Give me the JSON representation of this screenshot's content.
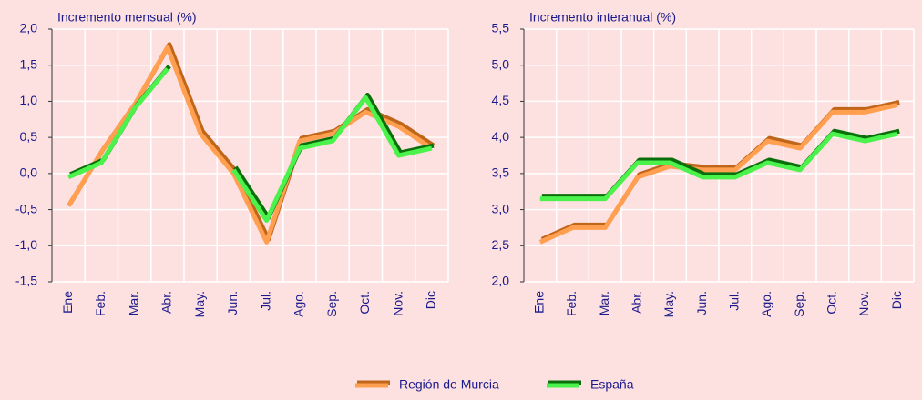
{
  "chart_data": [
    {
      "type": "line",
      "title": "Incremento mensual (%)",
      "categories": [
        "Ene",
        "Feb.",
        "Mar.",
        "Abr.",
        "May.",
        "Jun.",
        "Jul.",
        "Ago.",
        "Sep.",
        "Oct.",
        "Nov.",
        "Dic"
      ],
      "series": [
        {
          "name": "Región de Murcia",
          "color": "#ff9f4f",
          "shadow_color": "#c0661a",
          "values": [
            -0.45,
            0.3,
            0.95,
            1.75,
            0.55,
            0.0,
            -0.95,
            0.45,
            0.55,
            0.85,
            0.65,
            0.35
          ]
        },
        {
          "name": "España",
          "color": "#4cf24c",
          "shadow_color": "#0a6e0a",
          "values": [
            -0.05,
            0.15,
            0.9,
            1.45,
            null,
            0.05,
            -0.65,
            0.35,
            0.45,
            1.05,
            0.25,
            0.35
          ]
        }
      ],
      "ylim": [
        -1.5,
        2.0
      ],
      "yticks": [
        {
          "value": -1.5,
          "label": "-1,5"
        },
        {
          "value": -1.0,
          "label": "-1,0"
        },
        {
          "value": -0.5,
          "label": "-0,5"
        },
        {
          "value": 0,
          "label": "0,0"
        },
        {
          "value": 0.5,
          "label": "0,5"
        },
        {
          "value": 1.0,
          "label": "1,0"
        },
        {
          "value": 1.5,
          "label": "1,5"
        },
        {
          "value": 2.0,
          "label": "2,0"
        }
      ],
      "grid": true
    },
    {
      "type": "line",
      "title": "Incremento interanual (%)",
      "categories": [
        "Ene",
        "Feb.",
        "Mar.",
        "Abr.",
        "May.",
        "Jun.",
        "Jul.",
        "Ago.",
        "Sep.",
        "Oct.",
        "Nov.",
        "Dic"
      ],
      "series": [
        {
          "name": "Región de Murcia",
          "color": "#ff9f4f",
          "shadow_color": "#c0661a",
          "values": [
            2.55,
            2.75,
            2.75,
            3.45,
            3.6,
            3.55,
            3.55,
            3.95,
            3.85,
            4.35,
            4.35,
            4.45
          ]
        },
        {
          "name": "España",
          "color": "#4cf24c",
          "shadow_color": "#0a6e0a",
          "values": [
            3.15,
            3.15,
            3.15,
            3.65,
            3.65,
            3.45,
            3.45,
            3.65,
            3.55,
            4.05,
            3.95,
            4.05
          ]
        }
      ],
      "ylim": [
        2.0,
        5.5
      ],
      "yticks": [
        {
          "value": 2.0,
          "label": "2,0"
        },
        {
          "value": 2.5,
          "label": "2,5"
        },
        {
          "value": 3.0,
          "label": "3,0"
        },
        {
          "value": 3.5,
          "label": "3,5"
        },
        {
          "value": 4.0,
          "label": "4,0"
        },
        {
          "value": 4.5,
          "label": "4,5"
        },
        {
          "value": 5.0,
          "label": "5,0"
        },
        {
          "value": 5.5,
          "label": "5,5"
        }
      ],
      "grid": true
    }
  ]
}
